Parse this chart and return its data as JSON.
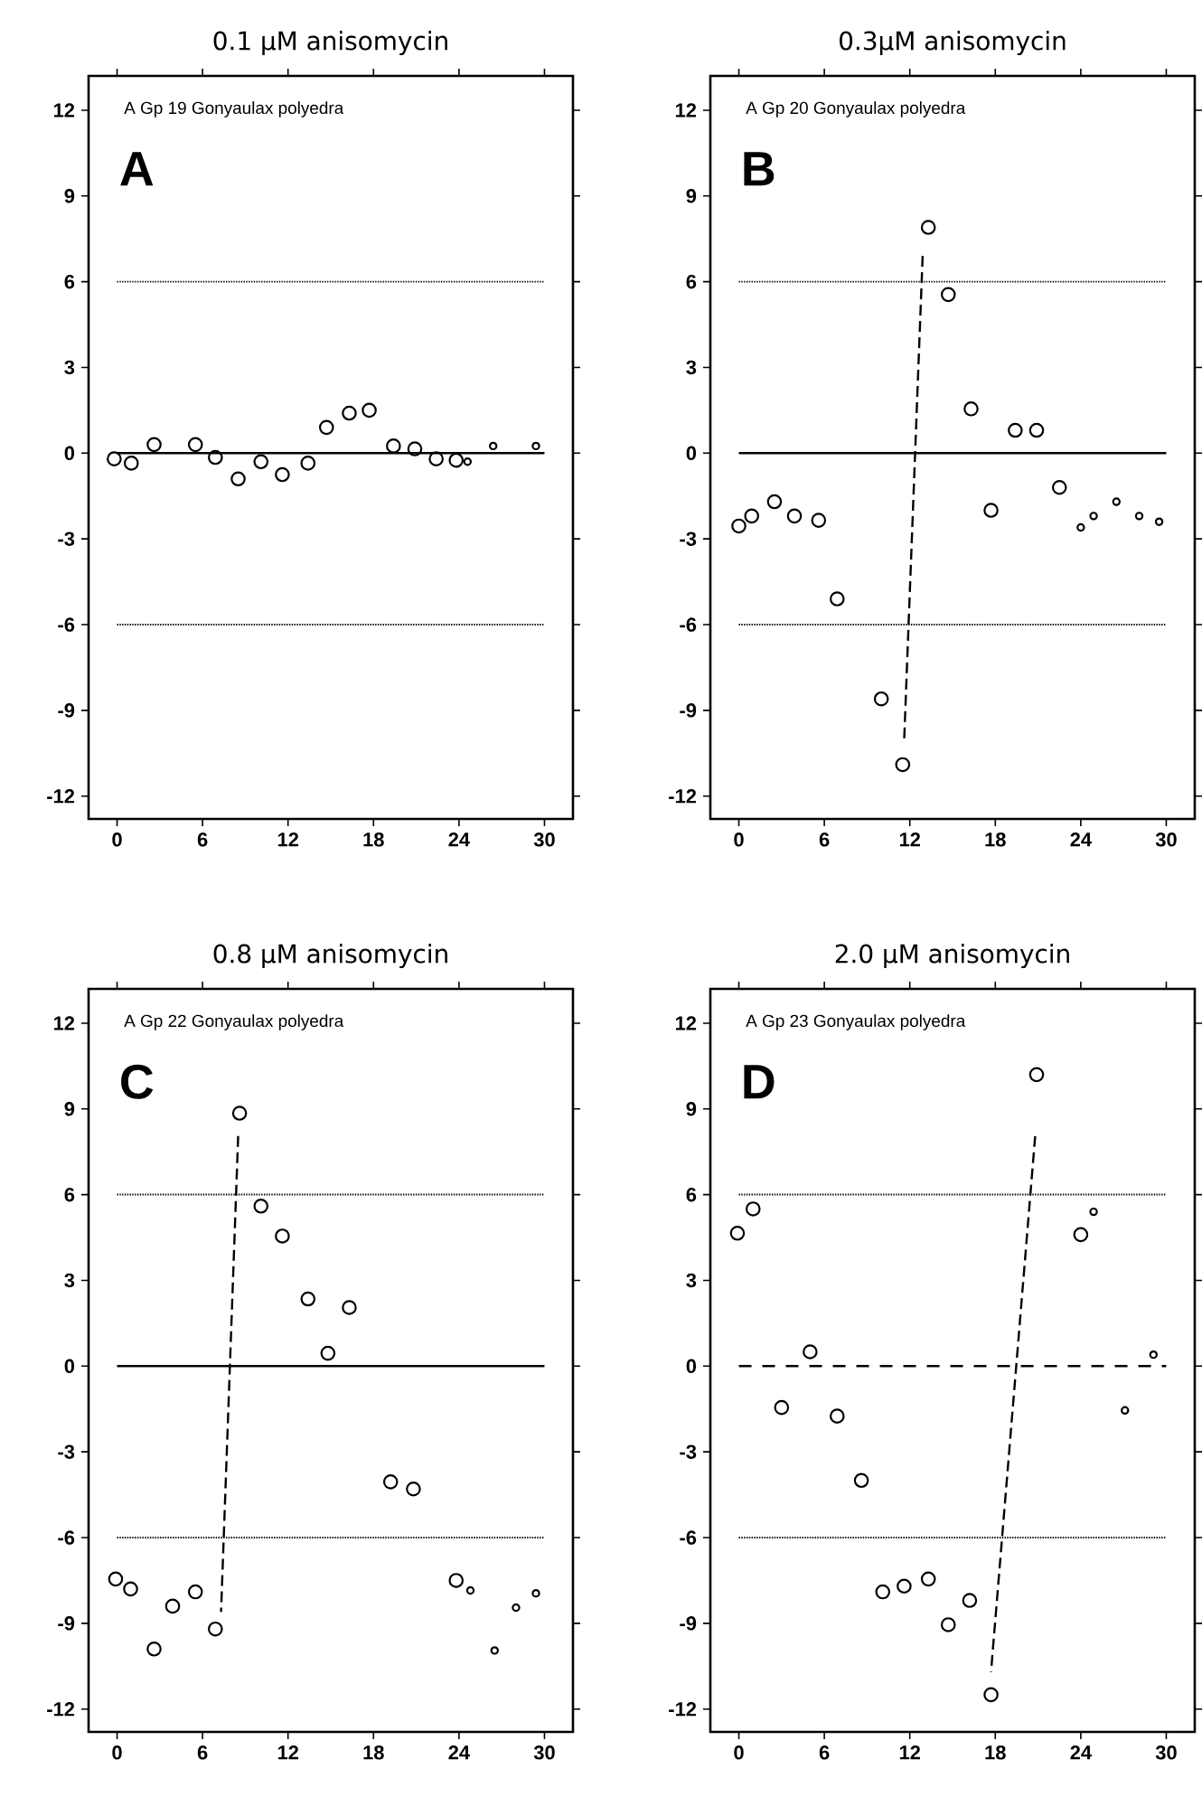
{
  "chart_data": [
    {
      "type": "scatter",
      "title": "0.1 μM anisomycin",
      "annotations": [
        "A Gp 19  Gonyaulax polyedra",
        "A"
      ],
      "xlim": [
        -2,
        32
      ],
      "ylim": [
        -12.8,
        13.2
      ],
      "xticks": [
        0,
        6,
        12,
        18,
        24,
        30
      ],
      "yticks": [
        -12,
        -9,
        -6,
        -3,
        0,
        3,
        6,
        9,
        12
      ],
      "marker": "circle",
      "series": [
        {
          "color": "#000000",
          "x": [
            -0.2,
            1.0,
            2.6,
            5.5,
            6.9,
            8.5,
            10.1,
            11.6,
            13.4,
            14.7,
            16.3,
            17.7,
            19.4,
            20.9,
            22.4,
            23.8
          ],
          "values": [
            -0.2,
            -0.35,
            0.3,
            0.3,
            -0.15,
            -0.9,
            -0.3,
            -0.75,
            -0.35,
            0.9,
            1.4,
            1.5,
            0.25,
            0.15,
            -0.2,
            -0.25
          ]
        },
        {
          "color": "#000000",
          "x": [
            24.6,
            26.4,
            29.4
          ],
          "values": [
            -0.3,
            0.25,
            0.25
          ]
        }
      ],
      "ref_lines": [
        {
          "axis": "y",
          "value": 6,
          "line_style": "dotted"
        },
        {
          "axis": "y",
          "value": -6,
          "line_style": "dotted"
        },
        {
          "axis": "y",
          "value": 0,
          "line_style": "solid"
        }
      ]
    },
    {
      "type": "scatter",
      "title": "0.3μM anisomycin",
      "annotations": [
        "A Gp 20  Gonyaulax polyedra",
        "B"
      ],
      "xlim": [
        -2,
        32
      ],
      "ylim": [
        -12.8,
        13.2
      ],
      "xticks": [
        0,
        6,
        12,
        18,
        24,
        30
      ],
      "yticks": [
        -12,
        -9,
        -6,
        -3,
        0,
        3,
        6,
        9,
        12
      ],
      "marker": "circle",
      "series": [
        {
          "color": "#000000",
          "x": [
            0,
            0.9,
            2.5,
            3.9,
            5.6,
            6.9,
            10.0,
            11.5,
            13.3,
            14.7,
            16.3,
            17.7,
            19.4,
            20.9,
            22.5
          ],
          "values": [
            -2.55,
            -2.2,
            -1.7,
            -2.2,
            -2.35,
            -5.1,
            -8.6,
            -10.9,
            7.9,
            5.55,
            1.55,
            -2.0,
            0.8,
            0.8,
            -1.2
          ]
        },
        {
          "color": "#000000",
          "x": [
            24.0,
            24.9,
            26.5,
            28.1,
            29.5
          ],
          "values": [
            -2.6,
            -2.2,
            -1.7,
            -2.2,
            -2.4
          ]
        },
        {
          "type": "line",
          "color": "#000000",
          "line_style": "dashed",
          "marker": "none",
          "x": [
            12.9,
            11.6
          ],
          "values": [
            6.9,
            -10.1
          ]
        }
      ],
      "ref_lines": [
        {
          "axis": "y",
          "value": 6,
          "line_style": "dotted"
        },
        {
          "axis": "y",
          "value": -6,
          "line_style": "dotted"
        },
        {
          "axis": "y",
          "value": 0,
          "line_style": "solid"
        }
      ]
    },
    {
      "type": "scatter",
      "title": "0.8 μM anisomycin",
      "annotations": [
        "A Gp 22  Gonyaulax polyedra",
        "C"
      ],
      "xlim": [
        -2,
        32
      ],
      "ylim": [
        -12.8,
        13.2
      ],
      "xticks": [
        0,
        6,
        12,
        18,
        24,
        30
      ],
      "yticks": [
        -12,
        -9,
        -6,
        -3,
        0,
        3,
        6,
        9,
        12
      ],
      "marker": "circle",
      "series": [
        {
          "color": "#000000",
          "x": [
            -0.1,
            0.95,
            2.6,
            3.9,
            5.5,
            6.9,
            8.6,
            10.1,
            11.6,
            13.4,
            14.8,
            16.3,
            19.2,
            20.8,
            23.8
          ],
          "values": [
            -7.45,
            -7.8,
            -9.9,
            -8.4,
            -7.9,
            -9.2,
            8.85,
            5.6,
            4.55,
            2.35,
            0.45,
            2.05,
            -4.05,
            -4.3,
            -7.5
          ]
        },
        {
          "color": "#000000",
          "x": [
            24.8,
            26.5,
            28.0,
            29.4
          ],
          "values": [
            -7.85,
            -9.95,
            -8.45,
            -7.95
          ]
        },
        {
          "type": "line",
          "color": "#000000",
          "line_style": "dashed",
          "marker": "none",
          "x": [
            8.5,
            7.3
          ],
          "values": [
            8.05,
            -8.6
          ]
        }
      ],
      "ref_lines": [
        {
          "axis": "y",
          "value": 6,
          "line_style": "dotted"
        },
        {
          "axis": "y",
          "value": -6,
          "line_style": "dotted"
        },
        {
          "axis": "y",
          "value": 0,
          "line_style": "solid"
        }
      ]
    },
    {
      "type": "scatter",
      "title": "2.0 μM anisomycin",
      "annotations": [
        "A Gp 23  Gonyaulax polyedra",
        "D"
      ],
      "xlim": [
        -2,
        32
      ],
      "ylim": [
        -12.8,
        13.2
      ],
      "xticks": [
        0,
        6,
        12,
        18,
        24,
        30
      ],
      "yticks": [
        -12,
        -9,
        -6,
        -3,
        0,
        3,
        6,
        9,
        12
      ],
      "marker": "circle",
      "series": [
        {
          "color": "#000000",
          "x": [
            -0.1,
            1.0,
            3.0,
            5.0,
            6.9,
            8.6,
            10.1,
            11.6,
            13.3,
            14.7,
            16.2,
            17.7,
            20.9,
            24.0
          ],
          "values": [
            4.65,
            5.5,
            -1.45,
            0.5,
            -1.75,
            -4.0,
            -7.9,
            -7.7,
            -7.45,
            -9.05,
            -8.2,
            -11.5,
            10.2,
            4.6
          ]
        },
        {
          "color": "#000000",
          "x": [
            24.9,
            27.1,
            29.1
          ],
          "values": [
            5.4,
            -1.55,
            0.4
          ]
        },
        {
          "type": "line",
          "color": "#000000",
          "line_style": "dashed",
          "marker": "none",
          "x": [
            20.8,
            17.7
          ],
          "values": [
            8.05,
            -10.7
          ]
        }
      ],
      "ref_lines": [
        {
          "axis": "y",
          "value": 6,
          "line_style": "dotted"
        },
        {
          "axis": "y",
          "value": -6,
          "line_style": "dotted"
        },
        {
          "axis": "y",
          "value": 0,
          "line_style": "dashed"
        }
      ]
    }
  ]
}
